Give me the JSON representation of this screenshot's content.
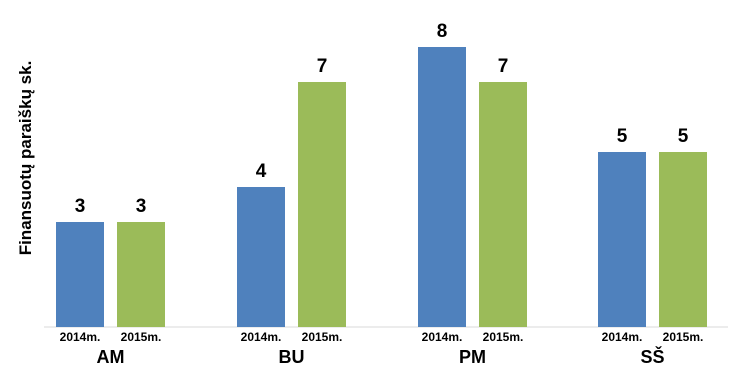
{
  "chart_data": {
    "type": "bar",
    "ylabel": "Finansuotų paraiškų sk.",
    "ylim": [
      0,
      8
    ],
    "grid": false,
    "legend": "none",
    "categories": [
      "AM",
      "BU",
      "PM",
      "SŠ"
    ],
    "series": [
      {
        "name": "2014m.",
        "color": "#4f81bd",
        "values": [
          3,
          4,
          8,
          5
        ]
      },
      {
        "name": "2015m.",
        "color": "#9bbb59",
        "values": [
          3,
          7,
          7,
          5
        ]
      }
    ]
  }
}
